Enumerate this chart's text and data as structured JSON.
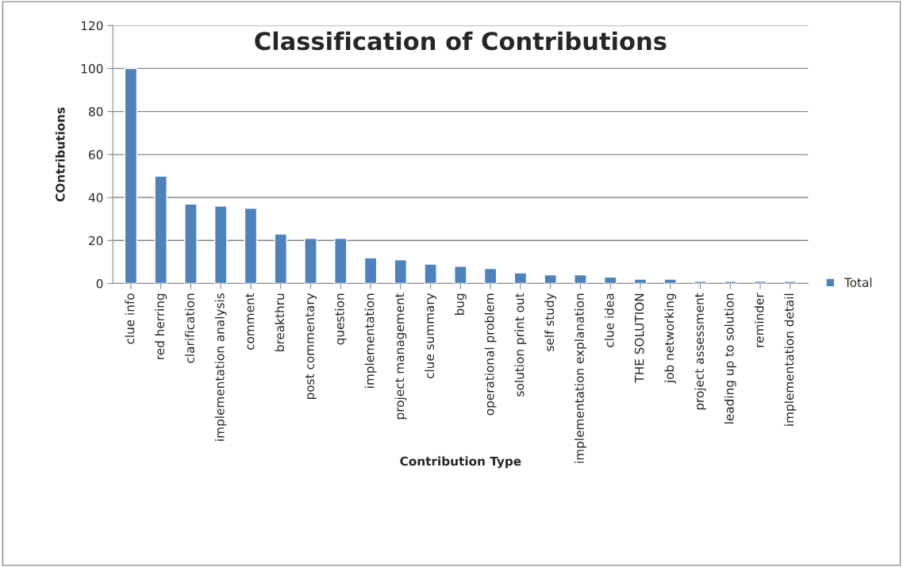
{
  "chart_data": {
    "type": "bar",
    "title": "Classification of Contributions",
    "xlabel": "Contribution Type",
    "ylabel": "COntributions",
    "categories": [
      "clue info",
      "red herring",
      "clarification",
      "implementation analysis",
      "comment",
      "breakthru",
      "post commentary",
      "question",
      "implementation",
      "project management",
      "clue summary",
      "bug",
      "operational problem",
      "solution print out",
      "self study",
      "implementation explanation",
      "clue idea",
      "THE SOLUTION",
      "job networking",
      "project assessment",
      "leading up to solution",
      "reminder",
      "implementation detail"
    ],
    "series": [
      {
        "name": "Total",
        "color": "#4f81bd",
        "values": [
          100,
          50,
          37,
          36,
          35,
          23,
          21,
          21,
          12,
          11,
          9,
          8,
          7,
          5,
          4,
          4,
          3,
          2,
          2,
          1,
          1,
          1,
          1
        ]
      }
    ],
    "ylim": [
      0,
      120
    ],
    "yticks": [
      0,
      20,
      40,
      60,
      80,
      100,
      120
    ],
    "grid": "y",
    "legend": "right"
  }
}
